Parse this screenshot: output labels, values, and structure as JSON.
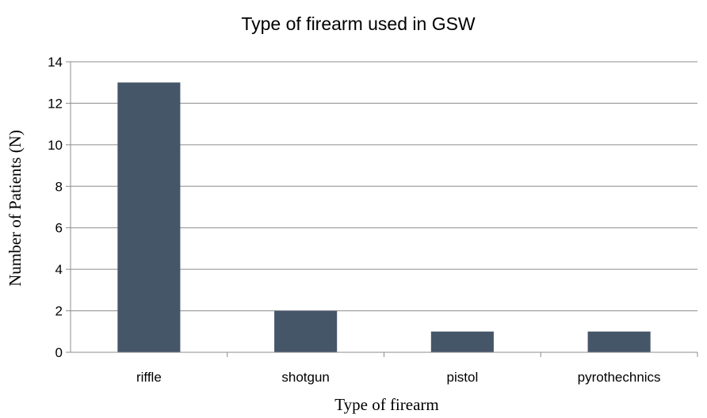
{
  "chart_data": {
    "type": "bar",
    "title": "Type of firearm used in GSW",
    "xlabel": "Type of firearm",
    "ylabel": "Number of Patients (N)",
    "categories": [
      "riffle",
      "shotgun",
      "pistol",
      "pyrothechnics"
    ],
    "values": [
      13,
      2,
      1,
      1
    ],
    "ylim": [
      0,
      14
    ],
    "yticks": [
      "0",
      "2",
      "4",
      "6",
      "8",
      "10",
      "12",
      "14"
    ],
    "grid": true,
    "legend": "none",
    "bar_color": "#465669",
    "grid_color": "#8c8c8c"
  }
}
